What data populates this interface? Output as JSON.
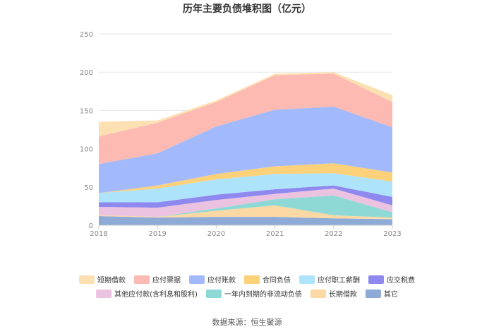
{
  "chart_data": {
    "type": "area",
    "stacked": true,
    "title": "历年主要负债堆积图（亿元）",
    "xlabel": "",
    "ylabel": "",
    "x": [
      "2018",
      "2019",
      "2020",
      "2021",
      "2022",
      "2023"
    ],
    "yticks": [
      "0",
      "50",
      "100",
      "150",
      "200",
      "250"
    ],
    "ylim": [
      0,
      250
    ],
    "grid": true,
    "legend_position": "bottom",
    "series": [
      {
        "name": "其它",
        "color": "#8eaad6",
        "values": [
          12,
          10,
          11,
          11,
          9,
          8
        ]
      },
      {
        "name": "长期借款",
        "color": "#fcd9a4",
        "values": [
          1,
          1,
          8,
          15,
          4,
          2
        ]
      },
      {
        "name": "一年内到期的非流动负债",
        "color": "#8ed9d6",
        "values": [
          0,
          0,
          3,
          8,
          26,
          7
        ]
      },
      {
        "name": "其他应付款(含利息和股利)",
        "color": "#ebc3e0",
        "values": [
          11,
          12,
          11,
          7,
          9,
          9
        ]
      },
      {
        "name": "应交税费",
        "color": "#8e88ef",
        "values": [
          6,
          7,
          7,
          6,
          4,
          11
        ]
      },
      {
        "name": "应付职工薪酬",
        "color": "#aee4fb",
        "values": [
          12,
          18,
          20,
          20,
          16,
          20
        ]
      },
      {
        "name": "合同负债",
        "color": "#fdd07a",
        "values": [
          0,
          4,
          7,
          10,
          13,
          12
        ]
      },
      {
        "name": "应付账款",
        "color": "#a2bafb",
        "values": [
          38,
          42,
          62,
          74,
          74,
          59
        ]
      },
      {
        "name": "应付票据",
        "color": "#fcbab2",
        "values": [
          36,
          40,
          32,
          45,
          43,
          33
        ]
      },
      {
        "name": "短期借款",
        "color": "#fde0b2",
        "values": [
          19,
          3,
          2,
          2,
          2,
          9
        ]
      }
    ],
    "legend_order": [
      "短期借款",
      "应付票据",
      "应付账款",
      "合同负债",
      "应付职工薪酬",
      "应交税费",
      "其他应付款(含利息和股利)",
      "一年内到期的非流动负债",
      "长期借款",
      "其它"
    ]
  },
  "source": "数据来源：恒生聚源"
}
